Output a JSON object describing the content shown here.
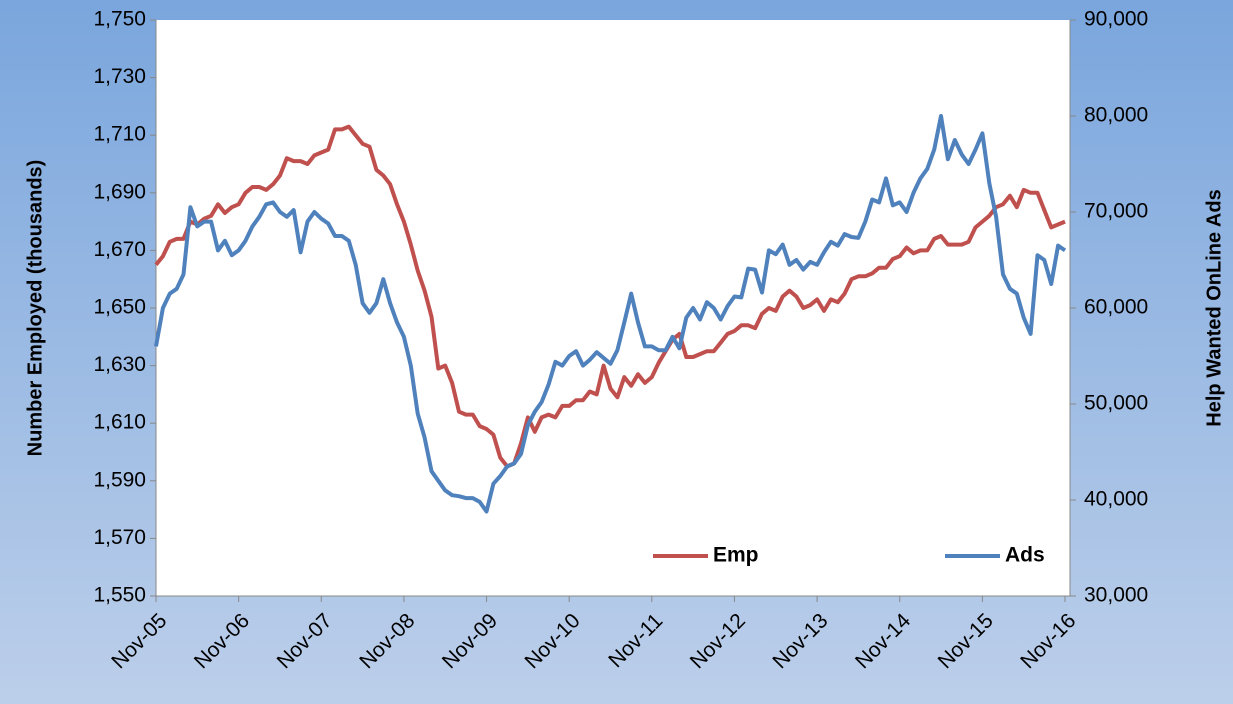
{
  "chart_data": {
    "type": "line",
    "y_label": "Number Employed (thousands)",
    "y2_label": "Help Wanted OnLine Ads",
    "categories": [
      "Nov-05",
      null,
      null,
      null,
      null,
      null,
      null,
      null,
      null,
      null,
      null,
      null,
      "Nov-06",
      null,
      null,
      null,
      null,
      null,
      null,
      null,
      null,
      null,
      null,
      null,
      "Nov-07",
      null,
      null,
      null,
      null,
      null,
      null,
      null,
      null,
      null,
      null,
      null,
      "Nov-08",
      null,
      null,
      null,
      null,
      null,
      null,
      null,
      null,
      null,
      null,
      null,
      "Nov-09",
      null,
      null,
      null,
      null,
      null,
      null,
      null,
      null,
      null,
      null,
      null,
      "Nov-10",
      null,
      null,
      null,
      null,
      null,
      null,
      null,
      null,
      null,
      null,
      null,
      "Nov-11",
      null,
      null,
      null,
      null,
      null,
      null,
      null,
      null,
      null,
      null,
      null,
      "Nov-12",
      null,
      null,
      null,
      null,
      null,
      null,
      null,
      null,
      null,
      null,
      null,
      "Nov-13",
      null,
      null,
      null,
      null,
      null,
      null,
      null,
      null,
      null,
      null,
      null,
      "Nov-14",
      null,
      null,
      null,
      null,
      null,
      null,
      null,
      null,
      null,
      null,
      null,
      "Nov-15",
      null,
      null,
      null,
      null,
      null,
      null,
      null,
      null,
      null,
      null,
      null,
      "Nov-16"
    ],
    "series": [
      {
        "name": "Emp",
        "color": "#c0504d",
        "values": [
          1665,
          1668,
          1673,
          1674,
          1674,
          1680,
          1679,
          1681,
          1682,
          1686,
          1683,
          1685,
          1686,
          1690,
          1692,
          1692,
          1691,
          1693,
          1696,
          1702,
          1701,
          1701,
          1700,
          1703,
          1704,
          1705,
          1712,
          1712,
          1713,
          1710,
          1707,
          1706,
          1698,
          1696,
          1693,
          1686,
          1680,
          1672,
          1663,
          1656,
          1647,
          1629,
          1630,
          1624,
          1614,
          1613,
          1613,
          1609,
          1608,
          1606,
          1598,
          1595,
          1596,
          1603,
          1612,
          1607,
          1612,
          1613,
          1612,
          1616,
          1616,
          1618,
          1618,
          1621,
          1620,
          1630,
          1622,
          1619,
          1626,
          1623,
          1627,
          1624,
          1626,
          1631,
          1635,
          1639,
          1641,
          1633,
          1633,
          1634,
          1635,
          1635,
          1638,
          1641,
          1642,
          1644,
          1644,
          1643,
          1648,
          1650,
          1649,
          1654,
          1656,
          1654,
          1650,
          1651,
          1653,
          1649,
          1653,
          1652,
          1655,
          1660,
          1661,
          1661,
          1662,
          1664,
          1664,
          1667,
          1668,
          1671,
          1669,
          1670,
          1670,
          1674,
          1675,
          1672,
          1672,
          1672,
          1673,
          1678,
          1680,
          1682,
          1685,
          1686,
          1689,
          1685,
          1691,
          1690,
          1690,
          1684,
          1678,
          1679,
          1680
        ]
      },
      {
        "name": "Ads",
        "color": "#4f81bd",
        "axis": "y2",
        "values": [
          56000,
          60000,
          61500,
          62000,
          63500,
          70500,
          68500,
          69000,
          69000,
          66000,
          67000,
          65500,
          66000,
          67000,
          68500,
          69500,
          70800,
          71000,
          70000,
          69500,
          70200,
          65800,
          69000,
          70000,
          69300,
          68800,
          67500,
          67500,
          67000,
          64500,
          60500,
          59500,
          60500,
          63000,
          60500,
          58500,
          57000,
          54000,
          49000,
          46500,
          43000,
          42000,
          41000,
          40500,
          40400,
          40200,
          40200,
          39800,
          38800,
          41700,
          42500,
          43500,
          43800,
          44800,
          47800,
          49200,
          50200,
          52000,
          54400,
          54000,
          55000,
          55500,
          54000,
          54600,
          55400,
          54800,
          54200,
          55600,
          58500,
          61500,
          58500,
          56000,
          56000,
          55600,
          55600,
          57000,
          55800,
          59000,
          60000,
          58800,
          60600,
          60000,
          58800,
          60200,
          61200,
          61100,
          64100,
          64000,
          61600,
          66000,
          65600,
          66600,
          64500,
          65000,
          64000,
          64800,
          64500,
          65800,
          66900,
          66500,
          67700,
          67400,
          67300,
          69000,
          71300,
          71000,
          73500,
          70700,
          71000,
          70000,
          72000,
          73500,
          74500,
          76500,
          80000,
          75500,
          77500,
          76000,
          75000,
          76500,
          78200,
          73000,
          69500,
          63500,
          62000,
          61500,
          59000,
          57300,
          65500,
          65000,
          62500,
          66500,
          66000
        ]
      }
    ],
    "ylim": [
      1550,
      1750
    ],
    "yticks": [
      {
        "value": 1550,
        "label": "1,550"
      },
      {
        "value": 1570,
        "label": "1,570"
      },
      {
        "value": 1590,
        "label": "1,590"
      },
      {
        "value": 1610,
        "label": "1,610"
      },
      {
        "value": 1630,
        "label": "1,630"
      },
      {
        "value": 1650,
        "label": "1,650"
      },
      {
        "value": 1670,
        "label": "1,670"
      },
      {
        "value": 1690,
        "label": "1,690"
      },
      {
        "value": 1710,
        "label": "1,710"
      },
      {
        "value": 1730,
        "label": "1,730"
      },
      {
        "value": 1750,
        "label": "1,750"
      }
    ],
    "y2lim": [
      30000,
      90000
    ],
    "y2ticks": [
      {
        "value": 30000,
        "label": "30,000"
      },
      {
        "value": 40000,
        "label": "40,000"
      },
      {
        "value": 50000,
        "label": "50,000"
      },
      {
        "value": 60000,
        "label": "60,000"
      },
      {
        "value": 70000,
        "label": "70,000"
      },
      {
        "value": 80000,
        "label": "80,000"
      },
      {
        "value": 90000,
        "label": "90,000"
      }
    ],
    "grid": false,
    "legend": "bottom"
  }
}
